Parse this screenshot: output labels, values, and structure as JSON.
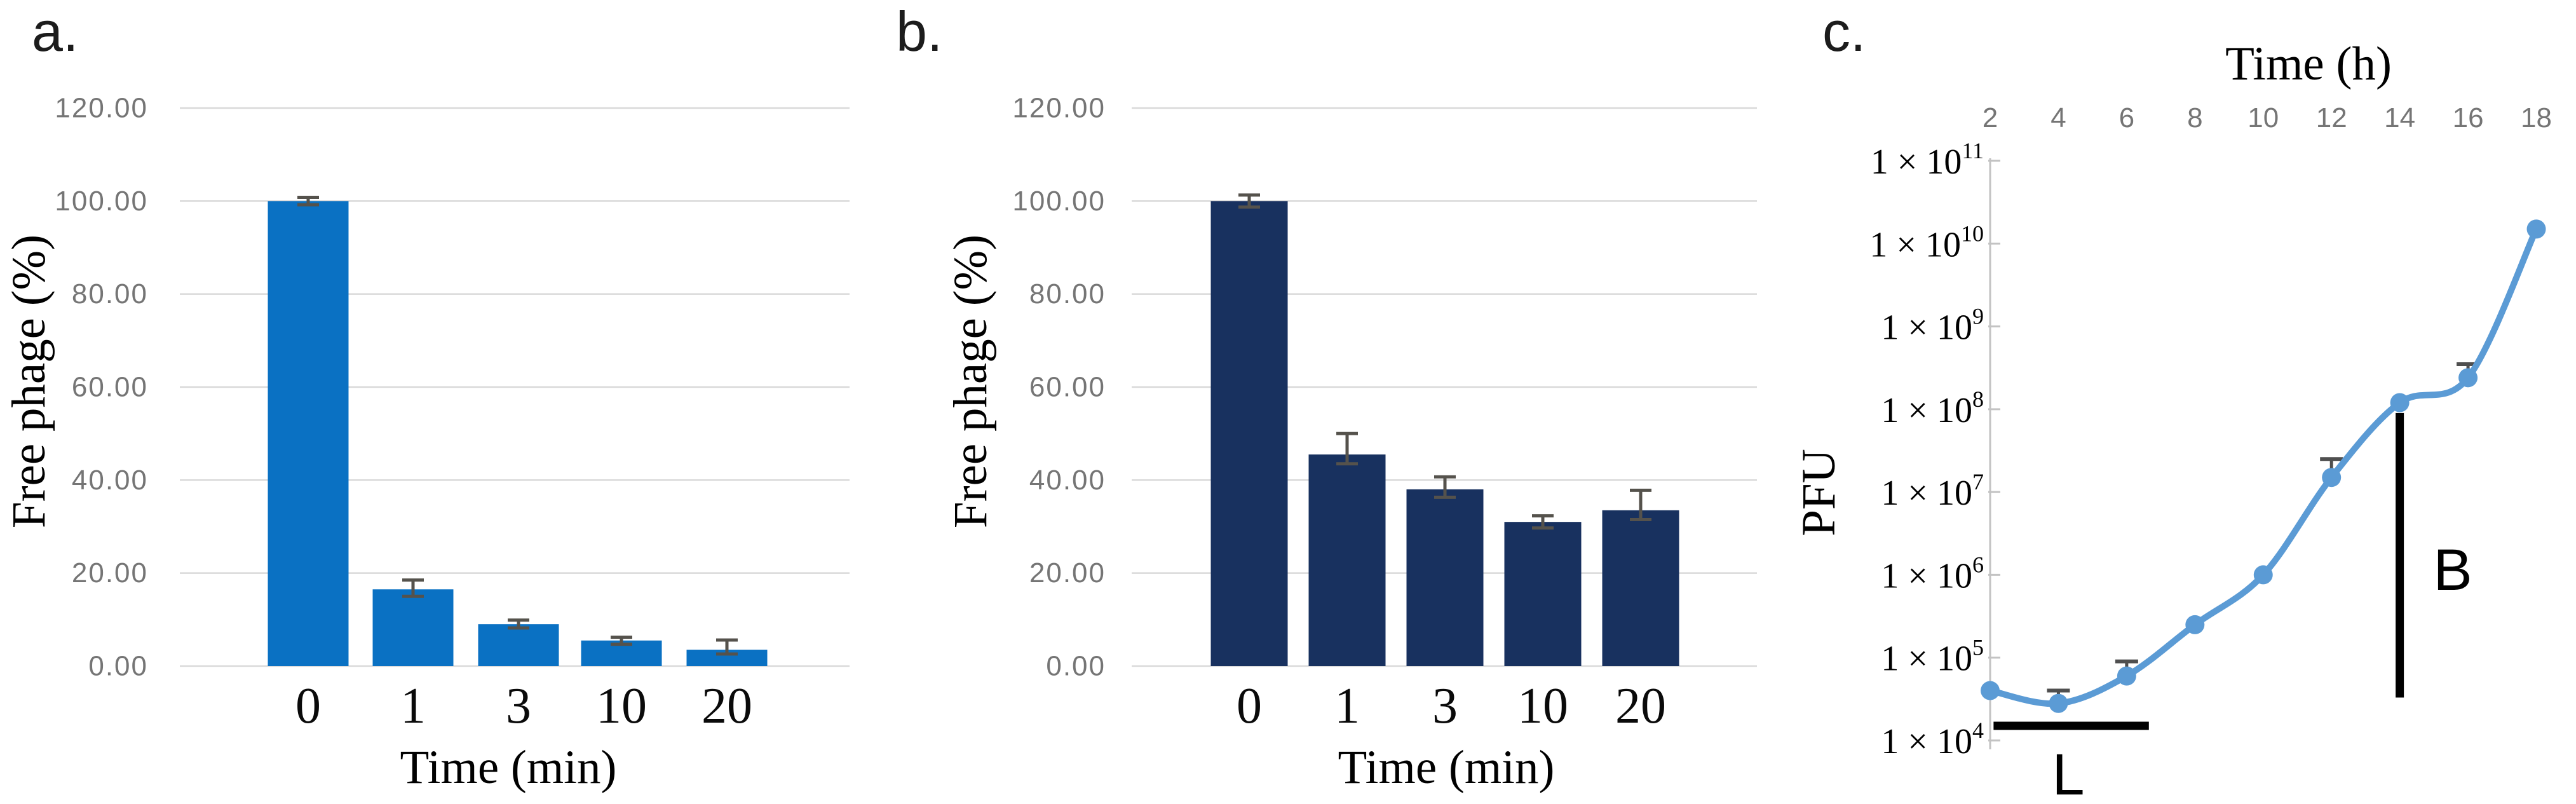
{
  "figure": {
    "background": "#ffffff",
    "colors": {
      "grid": "#d9d9d9",
      "axis_gray": "#c3c3c3",
      "tick_text_gray": "#757575",
      "error_bar": "#55524c",
      "black_text": "#000000",
      "panel_a_bar": "#0a71c3",
      "panel_b_bar": "#18315f",
      "panel_c_line": "#5b9bd5"
    }
  },
  "chart_data": [
    {
      "panel_label": "a.",
      "type": "bar",
      "xlabel": "Time (min)",
      "ylabel": "Free phage (%)",
      "categories": [
        "0",
        "1",
        "3",
        "10",
        "20"
      ],
      "values": [
        100.0,
        16.5,
        9.0,
        5.5,
        3.5
      ],
      "error_low": [
        99.2,
        15.0,
        8.2,
        4.7,
        2.6
      ],
      "error_high": [
        100.8,
        18.5,
        9.9,
        6.2,
        5.6
      ],
      "ylim": [
        0,
        120
      ],
      "ytick_labels": [
        "120.00",
        "100.00",
        "80.00",
        "60.00",
        "40.00",
        "20.00",
        "0.00"
      ],
      "grid": true,
      "legend": "none",
      "bar_color": "#0a71c3"
    },
    {
      "panel_label": "b.",
      "type": "bar",
      "xlabel": "Time (min)",
      "ylabel": "Free phage (%)",
      "categories": [
        "0",
        "1",
        "3",
        "10",
        "20"
      ],
      "values": [
        100.0,
        45.5,
        38.0,
        31.0,
        33.5
      ],
      "error_low": [
        98.7,
        43.5,
        36.3,
        29.7,
        31.5
      ],
      "error_high": [
        101.3,
        50.0,
        40.7,
        32.3,
        37.8
      ],
      "ylim": [
        0,
        120
      ],
      "ytick_labels": [
        "120.00",
        "100.00",
        "80.00",
        "60.00",
        "40.00",
        "20.00",
        "0.00"
      ],
      "grid": true,
      "legend": "none",
      "bar_color": "#18315f"
    },
    {
      "panel_label": "c.",
      "type": "line",
      "xlabel": "Time (h)",
      "xlabel_position": "top",
      "ylabel": "PFU",
      "yscale": "log",
      "ylim": [
        10000,
        100000000000
      ],
      "x": [
        2,
        4,
        6,
        8,
        10,
        12,
        14,
        16,
        18
      ],
      "y": [
        40000,
        28000,
        60000,
        250000,
        1000000,
        15000000,
        120000000,
        240000000,
        15000000000
      ],
      "error_high": [
        null,
        40000,
        90000,
        null,
        null,
        25000000,
        null,
        350000000,
        null
      ],
      "xtick_labels": [
        "2",
        "4",
        "6",
        "8",
        "10",
        "12",
        "14",
        "16",
        "18"
      ],
      "ytick_labels": [
        {
          "base": "1 × 10",
          "sup": "11"
        },
        {
          "base": "1 × 10",
          "sup": "10"
        },
        {
          "base": "1 × 10",
          "sup": "9"
        },
        {
          "base": "1 × 10",
          "sup": "8"
        },
        {
          "base": "1 × 10",
          "sup": "7"
        },
        {
          "base": "1 × 10",
          "sup": "6"
        },
        {
          "base": "1 × 10",
          "sup": "5"
        },
        {
          "base": "1 × 10",
          "sup": "4"
        }
      ],
      "grid": false,
      "legend": "none",
      "line_color": "#5b9bd5",
      "marker": "circle",
      "annotations": [
        {
          "label": "L",
          "shape": "horizontal-bar",
          "x_from": 2.1,
          "x_to": 6.65,
          "y_at": 15000
        },
        {
          "label": "B",
          "shape": "vertical-bar",
          "x_at": 14,
          "y_from": 33000,
          "y_to": 90000000
        }
      ]
    }
  ]
}
